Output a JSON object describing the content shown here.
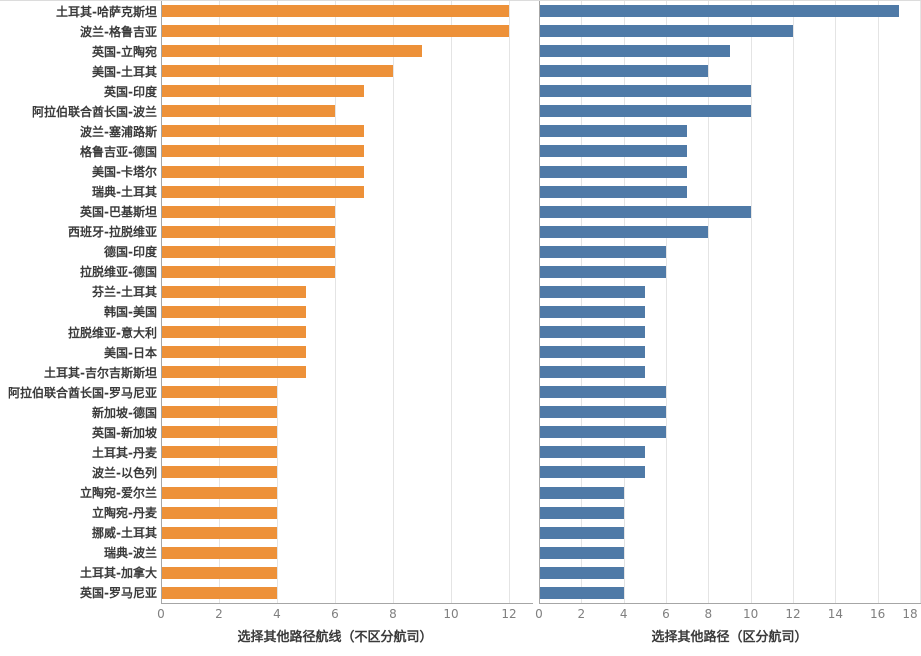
{
  "chart_data": {
    "type": "bar",
    "orientation": "horizontal",
    "grid": true,
    "legend": "none",
    "categories": [
      "土耳其-哈萨克斯坦",
      "波兰-格鲁吉亚",
      "英国-立陶宛",
      "美国-土耳其",
      "英国-印度",
      "阿拉伯联合酋长国-波兰",
      "波兰-塞浦路斯",
      "格鲁吉亚-德国",
      "美国-卡塔尔",
      "瑞典-土耳其",
      "英国-巴基斯坦",
      "西班牙-拉脱维亚",
      "德国-印度",
      "拉脱维亚-德国",
      "芬兰-土耳其",
      "韩国-美国",
      "拉脱维亚-意大利",
      "美国-日本",
      "土耳其-吉尔吉斯斯坦",
      "阿拉伯联合酋长国-罗马尼亚",
      "新加坡-德国",
      "英国-新加坡",
      "土耳其-丹麦",
      "波兰-以色列",
      "立陶宛-爱尔兰",
      "立陶宛-丹麦",
      "挪威-土耳其",
      "瑞典-波兰",
      "土耳其-加拿大",
      "英国-罗马尼亚"
    ],
    "series": [
      {
        "name": "选择其他路径航线（不区分航司）",
        "values": [
          12,
          12,
          9,
          8,
          7,
          6,
          7,
          7,
          7,
          7,
          6,
          6,
          6,
          6,
          5,
          5,
          5,
          5,
          5,
          4,
          4,
          4,
          4,
          4,
          4,
          4,
          4,
          4,
          4,
          4
        ],
        "color": "#ED9139",
        "xlim": [
          0,
          12
        ],
        "ticks": [
          0,
          2,
          4,
          6,
          8,
          10,
          12
        ]
      },
      {
        "name": "选择其他路径（区分航司）",
        "values": [
          17,
          12,
          9,
          8,
          10,
          10,
          7,
          7,
          7,
          7,
          10,
          8,
          6,
          6,
          5,
          5,
          5,
          5,
          5,
          6,
          6,
          6,
          5,
          5,
          4,
          4,
          4,
          4,
          4,
          4
        ],
        "color": "#4F7AA7",
        "xlim": [
          0,
          18
        ],
        "ticks": [
          0,
          2,
          4,
          6,
          8,
          10,
          12,
          14,
          16,
          18
        ]
      }
    ]
  },
  "colors": {
    "orange_bar": "#ED9139",
    "blue_bar": "#4F7AA7",
    "gridline": "#E4E4E4",
    "axis_line": "#A6A6A6",
    "tick_text": "#7F7F7F",
    "label_text": "#3A3A3A",
    "background": "#FFFFFF"
  }
}
